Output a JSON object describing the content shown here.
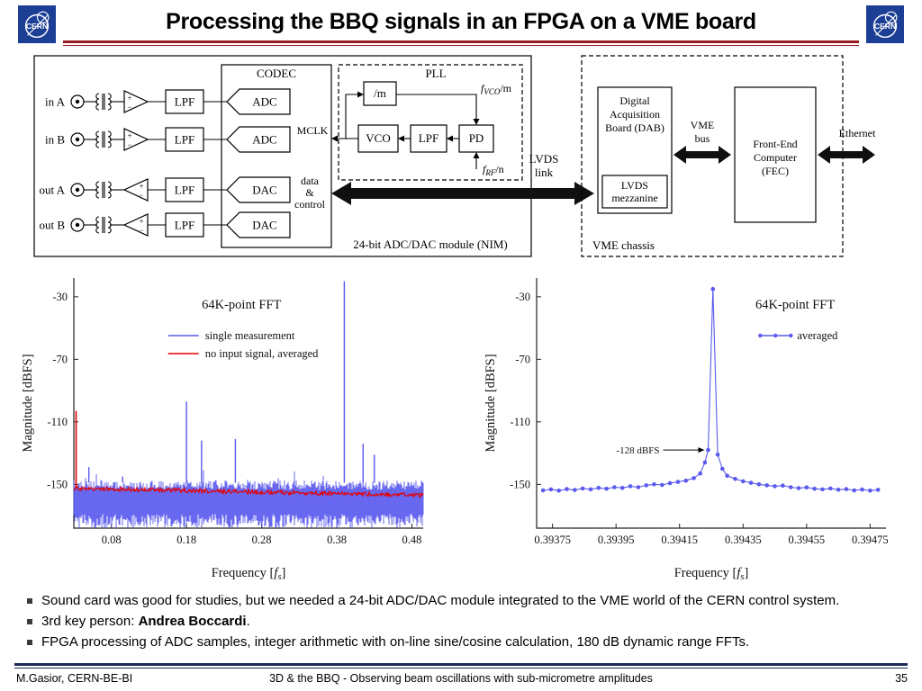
{
  "header": {
    "title": "Processing the BBQ signals in an FPGA on a VME board",
    "logo_text": "CERN"
  },
  "colors": {
    "accent_red": "#961b1e",
    "footer_navy": "#1e2a58",
    "logo_blue": "#1c3e94",
    "bullet": "#3a3a3a",
    "trace_blue": "#5a5aee",
    "trace_red": "#e60000"
  },
  "diagram": {
    "module_label": "24-bit ADC/DAC module (NIM)",
    "codec_label": "CODEC",
    "pll_label": "PLL",
    "port_labels": [
      "in A",
      "in B",
      "out A",
      "out B"
    ],
    "filter_label": "LPF",
    "adc_label": "ADC",
    "dac_label": "DAC",
    "divider_label": "/m",
    "vco_label": "VCO",
    "pll_filter_label": "LPF",
    "pd_label": "PD",
    "mclk_label": "MCLK",
    "f_vco": {
      "base": "f",
      "sub": "VCO",
      "tail": "/m"
    },
    "f_rf": {
      "base": "f",
      "sub": "RF",
      "tail": "/n"
    },
    "data_control_lines": [
      "data",
      "&",
      "control"
    ],
    "lvds_link_lines": [
      "LVDS",
      "link"
    ],
    "vme_chassis_label": "VME chassis",
    "dab_lines": [
      "Digital",
      "Acquisition",
      "Board (DAB)"
    ],
    "lvds_mezzanine_lines": [
      "LVDS",
      "mezzanine"
    ],
    "vme_bus_lines": [
      "VME",
      "bus"
    ],
    "fec_lines": [
      "Front-End",
      "Computer",
      "(FEC)"
    ],
    "ethernet_label": "Ethernet"
  },
  "chart_data": [
    {
      "type": "line",
      "title": "64K-point FFT",
      "xlabel": "Frequency [f_s]",
      "ylabel": "Magnitude [dBFS]",
      "xlim": [
        0.03,
        0.495
      ],
      "ylim": [
        -178,
        -18
      ],
      "xticks": [
        0.08,
        0.18,
        0.28,
        0.38,
        0.48
      ],
      "xtick_labels": [
        "0.08",
        "0.18",
        "0.28",
        "0.38",
        "0.48"
      ],
      "yticks": [
        -30,
        -70,
        -110,
        -150
      ],
      "ytick_labels": [
        "-30",
        "-70",
        "-110",
        "-150"
      ],
      "grid": false,
      "legend_position": "upper-center",
      "title_x_frac": 0.48,
      "legend_x_frac": 0.27,
      "series": [
        {
          "name": "single measurement",
          "color": "#5a5aee",
          "style": "noise",
          "noise_band": [
            -172,
            -149
          ],
          "spikes": [
            [
              0.05,
              -139
            ],
            [
              0.095,
              -145
            ],
            [
              0.18,
              -97
            ],
            [
              0.2,
              -122
            ],
            [
              0.245,
              -121
            ],
            [
              0.39,
              -20
            ],
            [
              0.415,
              -124
            ],
            [
              0.43,
              -131
            ]
          ]
        },
        {
          "name": "no input signal, averaged",
          "color": "#e60000",
          "style": "flat",
          "level_start": -152.5,
          "level_end": -157,
          "jitter": 1.4,
          "edge_spike": [
            0.033,
            -103
          ]
        }
      ]
    },
    {
      "type": "line",
      "title": "64K-point FFT",
      "xlabel": "Frequency [f_s]",
      "ylabel": "Magnitude [dBFS]",
      "xlim": [
        0.3937,
        0.3948
      ],
      "ylim": [
        -178,
        -18
      ],
      "xticks": [
        0.39375,
        0.39395,
        0.39415,
        0.39435,
        0.39455,
        0.39475
      ],
      "xtick_labels": [
        "0.39375",
        "0.39395",
        "0.39415",
        "0.39435",
        "0.39455",
        "0.39475"
      ],
      "yticks": [
        -30,
        -70,
        -110,
        -150
      ],
      "ytick_labels": [
        "-30",
        "-70",
        "-110",
        "-150"
      ],
      "grid": false,
      "legend_position": "upper-right",
      "title_x_frac": 0.74,
      "legend_x_frac": 0.64,
      "annotation": {
        "text": "-128 dBFS",
        "x": 0.39424,
        "y": -128
      },
      "series": [
        {
          "name": "averaged",
          "color": "#5a5aee",
          "style": "line-markers",
          "points": [
            [
              0.39372,
              -153.8
            ],
            [
              0.393745,
              -153.2
            ],
            [
              0.39377,
              -154
            ],
            [
              0.393795,
              -153
            ],
            [
              0.39382,
              -153.6
            ],
            [
              0.393845,
              -152.6
            ],
            [
              0.39387,
              -153.2
            ],
            [
              0.393895,
              -152.2
            ],
            [
              0.39392,
              -152.8
            ],
            [
              0.393945,
              -151.8
            ],
            [
              0.39397,
              -152.3
            ],
            [
              0.393995,
              -151.2
            ],
            [
              0.39402,
              -151.8
            ],
            [
              0.394045,
              -150.6
            ],
            [
              0.39407,
              -150
            ],
            [
              0.394095,
              -150.4
            ],
            [
              0.39412,
              -149.2
            ],
            [
              0.394145,
              -148.4
            ],
            [
              0.39417,
              -147.6
            ],
            [
              0.394195,
              -146
            ],
            [
              0.394215,
              -143
            ],
            [
              0.39423,
              -136
            ],
            [
              0.39424,
              -128
            ],
            [
              0.394255,
              -25
            ],
            [
              0.39427,
              -131
            ],
            [
              0.394285,
              -140
            ],
            [
              0.3943,
              -144.5
            ],
            [
              0.394325,
              -146.5
            ],
            [
              0.39435,
              -148
            ],
            [
              0.394375,
              -149
            ],
            [
              0.3944,
              -150
            ],
            [
              0.394425,
              -150.6
            ],
            [
              0.39445,
              -151.2
            ],
            [
              0.394475,
              -150.8
            ],
            [
              0.3945,
              -151.8
            ],
            [
              0.394525,
              -152.4
            ],
            [
              0.39455,
              -151.9
            ],
            [
              0.394575,
              -152.8
            ],
            [
              0.3946,
              -153.2
            ],
            [
              0.394625,
              -152.6
            ],
            [
              0.39465,
              -153.4
            ],
            [
              0.394675,
              -153
            ],
            [
              0.3947,
              -153.8
            ],
            [
              0.394725,
              -153.3
            ],
            [
              0.39475,
              -154
            ],
            [
              0.394775,
              -153.5
            ]
          ]
        }
      ]
    }
  ],
  "bullets": [
    {
      "segments": [
        {
          "text": "Sound card was good for studies, but we needed a 24-bit ADC/DAC module integrated to the VME world of the CERN control system.",
          "bold": false
        }
      ]
    },
    {
      "segments": [
        {
          "text": "3rd key person: ",
          "bold": false
        },
        {
          "text": "Andrea Boccardi",
          "bold": true
        },
        {
          "text": ".",
          "bold": false
        }
      ]
    },
    {
      "segments": [
        {
          "text": "FPGA processing of ADC samples, integer arithmetic with on-line sine/cosine calculation, 180 dB dynamic range FFTs.",
          "bold": false
        }
      ]
    }
  ],
  "footer": {
    "left": "M.Gasior, CERN-BE-BI",
    "center": "3D & the BBQ - Observing beam oscillations with sub-micrometre amplitudes",
    "page": "35"
  }
}
